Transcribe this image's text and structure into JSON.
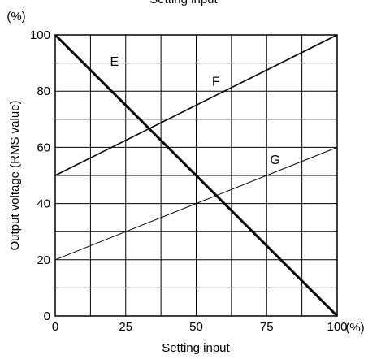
{
  "chart_data": {
    "type": "line",
    "top_caption": "Setting input",
    "xlabel": "Setting input",
    "ylabel": "Output voltage (RMS value)",
    "x_unit": "(%)",
    "y_unit": "(%)",
    "xlim": [
      0,
      100
    ],
    "ylim": [
      0,
      100
    ],
    "x_ticks": [
      "0",
      "25",
      "50",
      "75",
      "100"
    ],
    "y_ticks": [
      "0",
      "20",
      "40",
      "60",
      "80",
      "100"
    ],
    "grid": true,
    "grid_x_step": 12.5,
    "grid_y_step": 10,
    "series": [
      {
        "name": "E",
        "x": [
          0,
          100
        ],
        "y": [
          100,
          0
        ],
        "style": "thick"
      },
      {
        "name": "F",
        "x": [
          0,
          100
        ],
        "y": [
          50,
          100
        ],
        "style": "medium"
      },
      {
        "name": "G",
        "x": [
          0,
          100
        ],
        "y": [
          20,
          60
        ],
        "style": "thin"
      }
    ],
    "series_label_positions": [
      {
        "name": "E",
        "x": 21,
        "y": 89
      },
      {
        "name": "F",
        "x": 57,
        "y": 82
      },
      {
        "name": "G",
        "x": 78,
        "y": 54
      }
    ],
    "line_color": "#000000",
    "background": "#ffffff"
  }
}
